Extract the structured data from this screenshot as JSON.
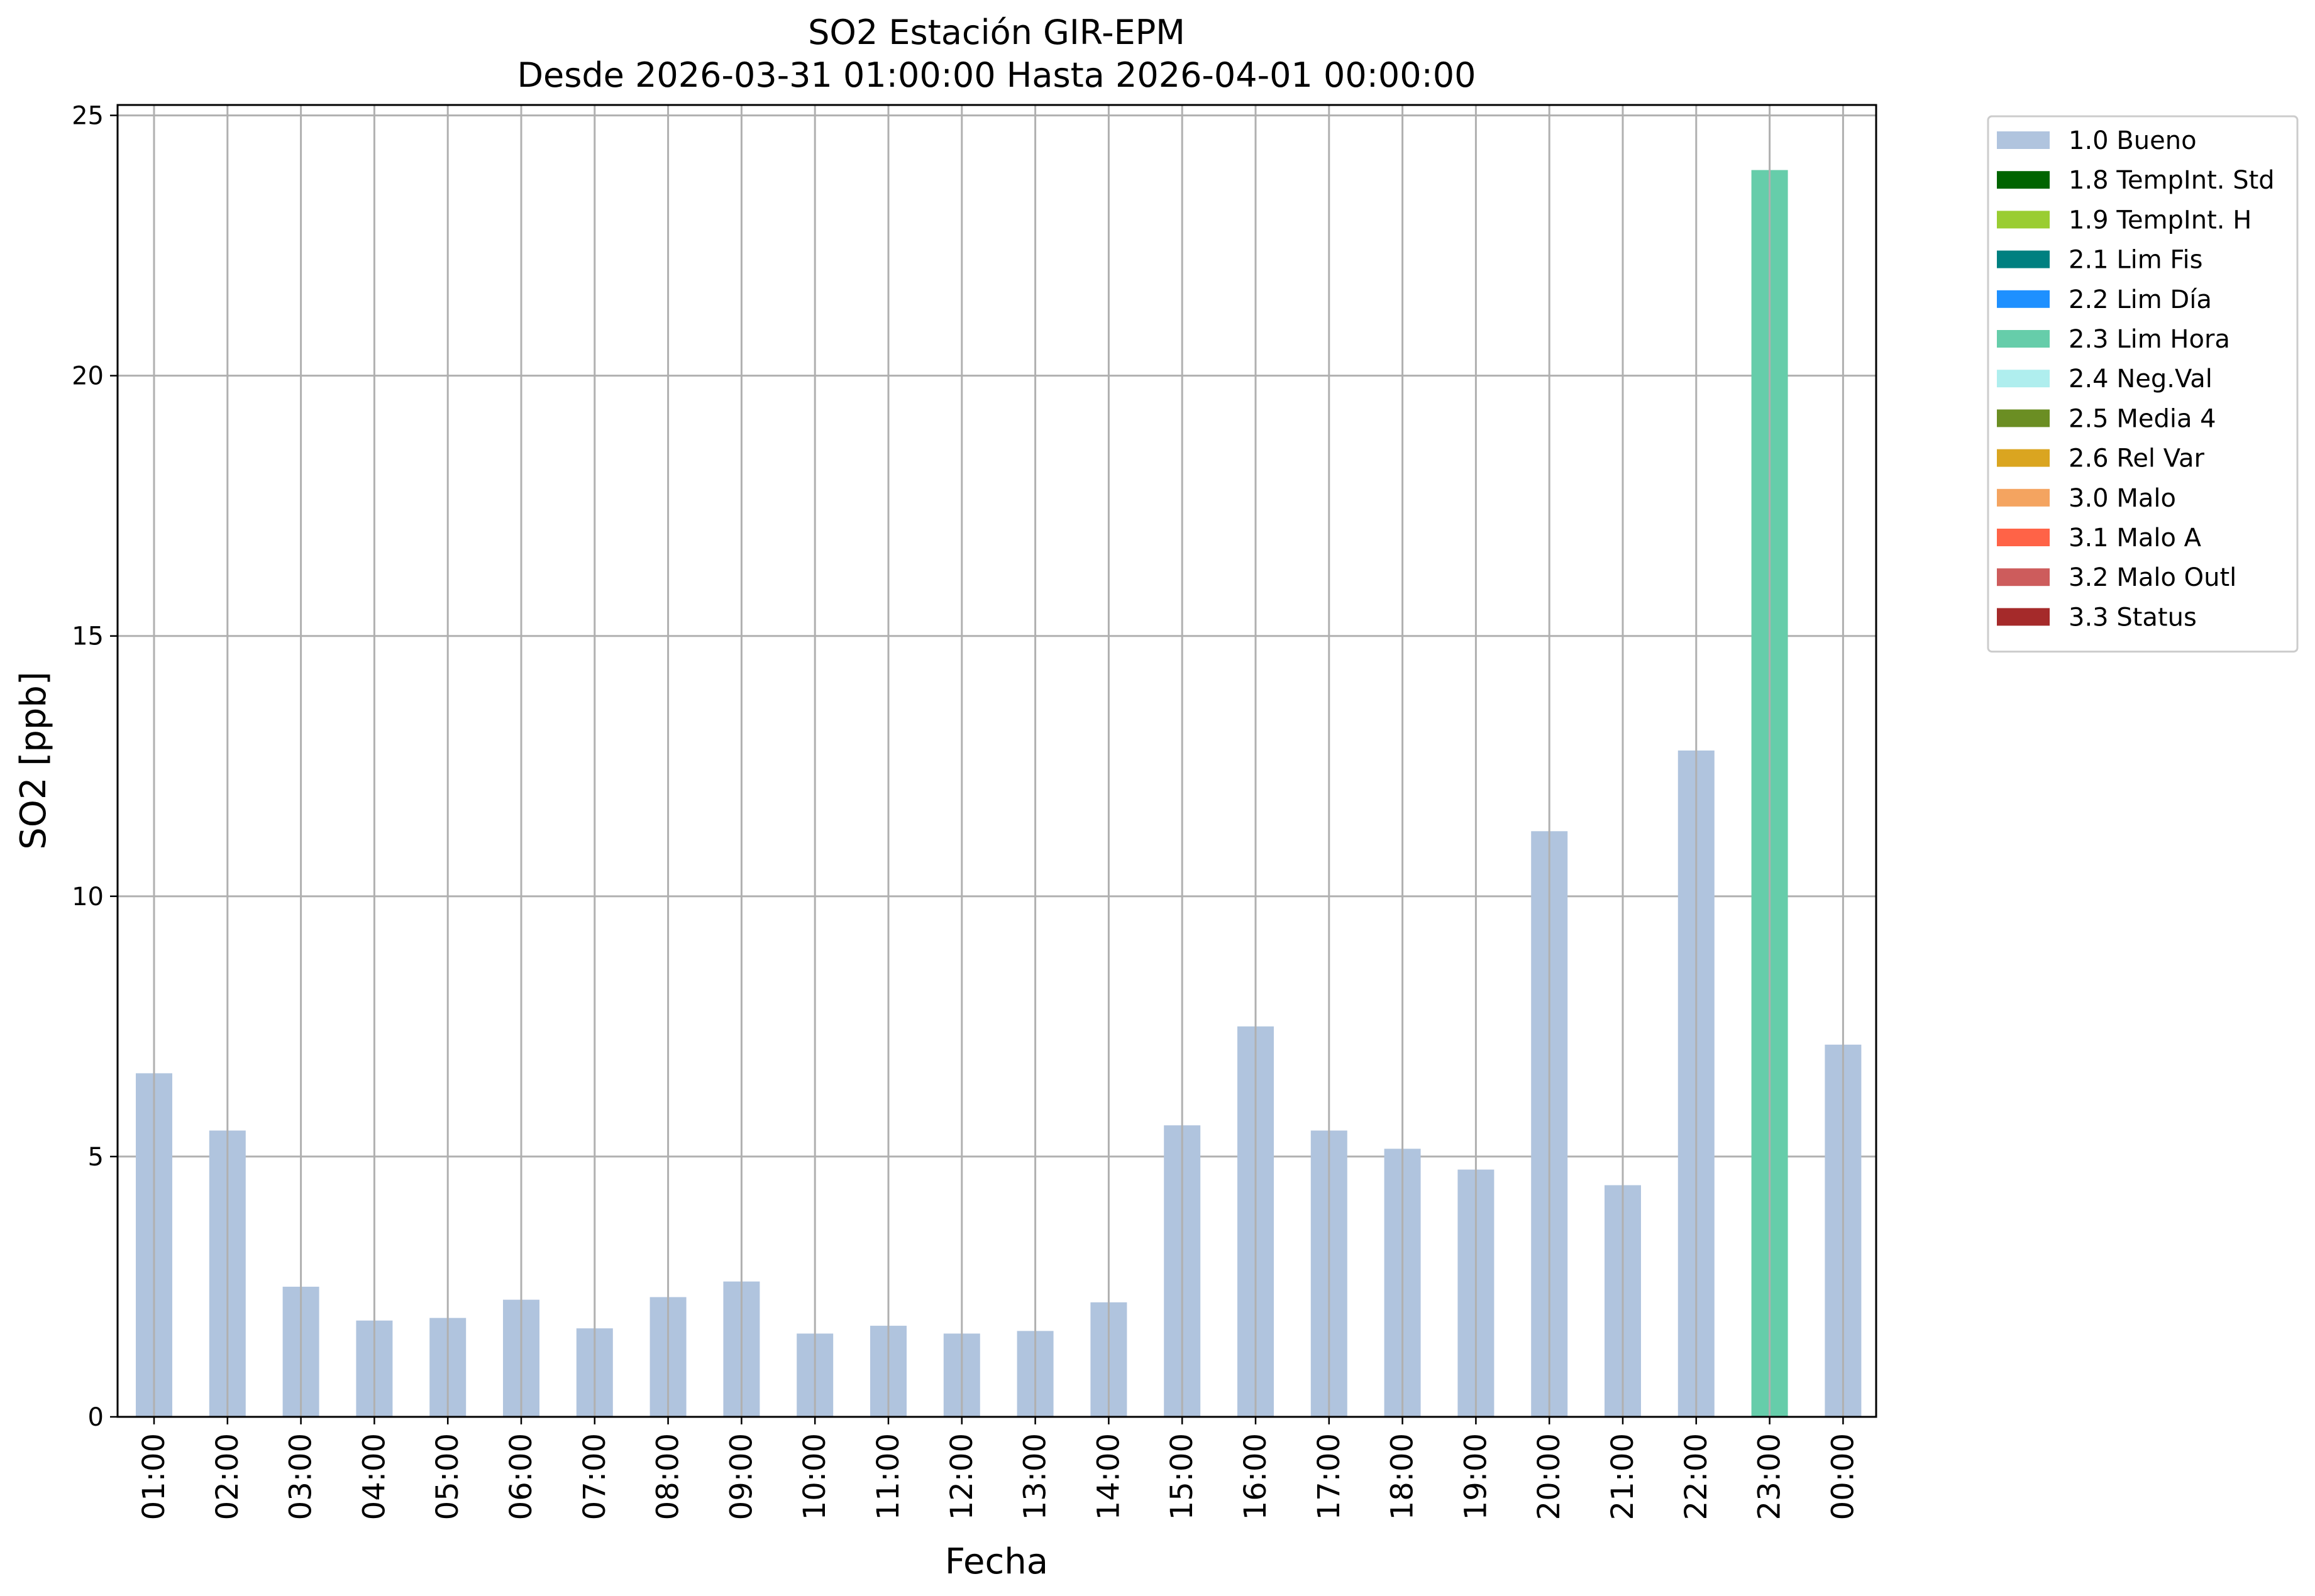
{
  "chart_data": {
    "type": "bar",
    "title": "SO2 Estación GIR-EPM",
    "subtitle": "Desde 2026-03-31 01:00:00 Hasta 2026-04-01 00:00:00",
    "xlabel": "Fecha",
    "ylabel": "SO2 [ppb]",
    "ylim": [
      0,
      25.2
    ],
    "yticks": [
      "0",
      "5",
      "10",
      "15",
      "20",
      "25"
    ],
    "grid": true,
    "legend_position": "outside-top-right",
    "categories": [
      "01:00",
      "02:00",
      "03:00",
      "04:00",
      "05:00",
      "06:00",
      "07:00",
      "08:00",
      "09:00",
      "10:00",
      "11:00",
      "12:00",
      "13:00",
      "14:00",
      "15:00",
      "16:00",
      "17:00",
      "18:00",
      "19:00",
      "20:00",
      "21:00",
      "22:00",
      "23:00",
      "00:00"
    ],
    "values": [
      6.6,
      5.5,
      2.5,
      1.85,
      1.9,
      2.25,
      1.7,
      2.3,
      2.6,
      1.6,
      1.75,
      1.6,
      1.65,
      2.2,
      5.6,
      7.5,
      5.5,
      5.15,
      4.75,
      11.25,
      4.45,
      12.8,
      23.95,
      7.15
    ],
    "flags": [
      "1.0",
      "1.0",
      "1.0",
      "1.0",
      "1.0",
      "1.0",
      "1.0",
      "1.0",
      "1.0",
      "1.0",
      "1.0",
      "1.0",
      "1.0",
      "1.0",
      "1.0",
      "1.0",
      "1.0",
      "1.0",
      "1.0",
      "1.0",
      "1.0",
      "1.0",
      "2.3",
      "1.0"
    ],
    "legend": [
      {
        "code": "1.0",
        "label": "1.0 Bueno",
        "color": "#b0c4de"
      },
      {
        "code": "1.8",
        "label": "1.8 TempInt. Std",
        "color": "#006400"
      },
      {
        "code": "1.9",
        "label": "1.9 TempInt. H",
        "color": "#9acd32"
      },
      {
        "code": "2.1",
        "label": "2.1 Lim Fis",
        "color": "#008080"
      },
      {
        "code": "2.2",
        "label": "2.2 Lim Día",
        "color": "#1e90ff"
      },
      {
        "code": "2.3",
        "label": "2.3 Lim Hora",
        "color": "#66cdaa"
      },
      {
        "code": "2.4",
        "label": "2.4 Neg.Val",
        "color": "#afeeee"
      },
      {
        "code": "2.5",
        "label": "2.5 Media 4",
        "color": "#6b8e23"
      },
      {
        "code": "2.6",
        "label": "2.6 Rel Var",
        "color": "#daa520"
      },
      {
        "code": "3.0",
        "label": "3.0 Malo",
        "color": "#f4a460"
      },
      {
        "code": "3.1",
        "label": "3.1 Malo A",
        "color": "#ff6347"
      },
      {
        "code": "3.2",
        "label": "3.2 Malo Outl",
        "color": "#cd5c5c"
      },
      {
        "code": "3.3",
        "label": "3.3 Status",
        "color": "#a52a2a"
      }
    ]
  }
}
